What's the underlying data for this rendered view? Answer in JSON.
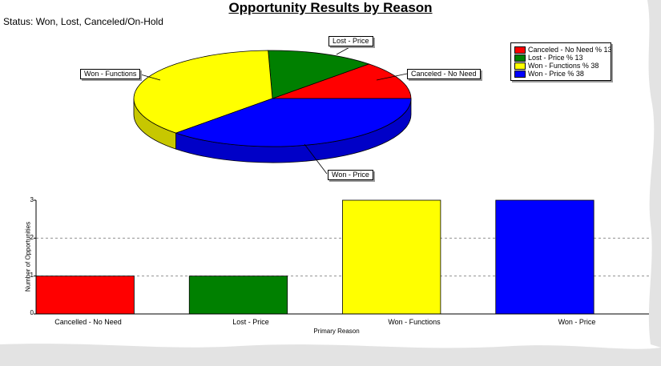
{
  "chart_data": [
    {
      "type": "pie",
      "title": "Opportunity Results by Reason",
      "subtitle": "Status: Won, Lost, Canceled/On-Hold",
      "categories": [
        "Canceled - No Need",
        "Lost - Price",
        "Won - Functions",
        "Won - Price"
      ],
      "values": [
        13,
        13,
        38,
        38
      ],
      "colors": [
        "#ff0000",
        "#008000",
        "#ffff00",
        "#0000ff"
      ],
      "legend": [
        "Canceled - No Need % 13",
        "Lost - Price % 13",
        "Won - Functions % 38",
        "Won - Price % 38"
      ],
      "callouts": [
        "Lost - Price",
        "Canceled - No Need",
        "Won - Functions",
        "Won - Price"
      ],
      "legend_position": "top-right",
      "style": "3d"
    },
    {
      "type": "bar",
      "categories": [
        "Cancelled - No Need",
        "Lost - Price",
        "Won - Functions",
        "Won - Price"
      ],
      "values": [
        1,
        1,
        3,
        3
      ],
      "colors": [
        "#ff0000",
        "#008000",
        "#ffff00",
        "#0000ff"
      ],
      "xlabel": "Primary Reason",
      "ylabel": "Number of Opportunities",
      "ylim": [
        0,
        3
      ],
      "yticks": [
        "0",
        "1",
        "2",
        "3"
      ],
      "grid": true
    }
  ]
}
